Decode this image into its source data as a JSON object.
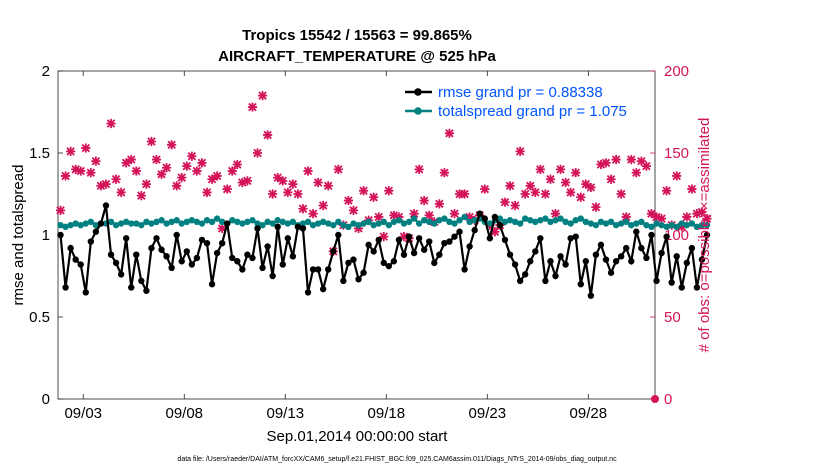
{
  "chart_data": {
    "type": "line",
    "title": "Tropics 15542 / 15563 = 99.865%",
    "subtitle": "AIRCRAFT_TEMPERATURE @ 525 hPa",
    "xlabel": "Sep.01,2014 00:00:00 start",
    "ylabel": "rmse and totalspread",
    "y2label": "# of obs: o=possible; ×=assimilated",
    "footnote": "data file: /Users/raeder/DAI/ATM_forcXX/CAM6_setup/f.e21.FHIST_BGC.f09_025.CAM6assim.011/Diags_NTrS_2014-09/obs_diag_output.nc",
    "x_unit": "days since Sep.01,2014 00:00",
    "xlim": [
      0.75,
      30.3
    ],
    "ylim": [
      0,
      2
    ],
    "y2lim": [
      0,
      200
    ],
    "x_ticks": [
      2,
      7,
      12,
      17,
      22,
      27
    ],
    "x_tick_labels": [
      "09/03",
      "09/08",
      "09/13",
      "09/18",
      "09/23",
      "09/28"
    ],
    "y_ticks": [
      "0",
      "0.5",
      "1",
      "1.5",
      "2"
    ],
    "y2_ticks": [
      "0",
      "50",
      "100",
      "150",
      "200"
    ],
    "legend_position": "top-right",
    "colors": {
      "rmse": "#000000",
      "spread": "#008080",
      "obs": "#d4145a",
      "legend_text": "#0055ff"
    },
    "series": [
      {
        "name": "rmse grand pr = 0.88338",
        "axis": "left",
        "values": [
          1.0,
          0.68,
          0.92,
          0.85,
          0.82,
          0.65,
          0.96,
          1.02,
          1.07,
          1.18,
          0.88,
          0.83,
          0.76,
          0.98,
          0.68,
          0.88,
          0.72,
          0.66,
          0.92,
          0.98,
          0.91,
          0.87,
          0.8,
          1.0,
          0.84,
          0.9,
          0.82,
          0.86,
          0.97,
          0.95,
          0.7,
          0.89,
          0.95,
          1.07,
          0.86,
          0.84,
          0.79,
          0.88,
          0.86,
          1.04,
          0.8,
          0.93,
          0.75,
          1.05,
          0.82,
          0.98,
          0.87,
          1.05,
          1.04,
          0.65,
          0.79,
          0.79,
          0.67,
          0.79,
          0.9,
          1.0,
          0.72,
          0.83,
          0.85,
          0.73,
          0.77,
          0.94,
          0.9,
          0.97,
          0.83,
          0.81,
          0.84,
          0.97,
          0.88,
          0.99,
          0.89,
          0.98,
          0.91,
          0.96,
          0.83,
          0.88,
          0.95,
          0.96,
          0.99,
          1.02,
          0.79,
          0.93,
          1.03,
          1.13,
          1.1,
          0.98,
          1.11,
          1.06,
          0.97,
          0.88,
          0.82,
          0.72,
          0.76,
          0.84,
          0.9,
          0.98,
          0.72,
          0.84,
          0.75,
          0.87,
          0.82,
          0.98,
          0.99,
          0.7,
          0.84,
          0.63,
          0.88,
          0.94,
          0.85,
          0.77,
          0.84,
          0.87,
          0.92,
          0.84,
          1.02,
          0.92,
          0.86,
          1.0,
          0.72,
          0.89,
          0.99,
          0.71,
          0.87,
          0.68,
          0.83,
          0.92,
          0.68,
          0.85,
          1.0
        ]
      },
      {
        "name": "totalspread grand pr = 1.075",
        "axis": "left",
        "values": [
          1.06,
          1.05,
          1.06,
          1.07,
          1.06,
          1.07,
          1.08,
          1.06,
          1.07,
          1.07,
          1.08,
          1.06,
          1.07,
          1.08,
          1.07,
          1.07,
          1.06,
          1.08,
          1.07,
          1.08,
          1.09,
          1.07,
          1.08,
          1.09,
          1.07,
          1.08,
          1.09,
          1.08,
          1.07,
          1.09,
          1.08,
          1.1,
          1.08,
          1.07,
          1.09,
          1.08,
          1.07,
          1.08,
          1.09,
          1.07,
          1.06,
          1.08,
          1.07,
          1.09,
          1.08,
          1.07,
          1.08,
          1.06,
          1.07,
          1.08,
          1.06,
          1.07,
          1.08,
          1.07,
          1.06,
          1.08,
          1.06,
          1.05,
          1.07,
          1.06,
          1.07,
          1.08,
          1.06,
          1.07,
          1.08,
          1.06,
          1.08,
          1.09,
          1.07,
          1.08,
          1.1,
          1.07,
          1.09,
          1.08,
          1.07,
          1.09,
          1.1,
          1.08,
          1.07,
          1.09,
          1.11,
          1.08,
          1.09,
          1.1,
          1.08,
          1.07,
          1.09,
          1.1,
          1.08,
          1.09,
          1.08,
          1.07,
          1.1,
          1.09,
          1.08,
          1.09,
          1.1,
          1.08,
          1.09,
          1.1,
          1.08,
          1.07,
          1.09,
          1.1,
          1.08,
          1.07,
          1.06,
          1.08,
          1.07,
          1.08,
          1.06,
          1.07,
          1.08,
          1.06,
          1.07,
          1.08,
          1.06,
          1.05,
          1.07,
          1.06,
          1.05,
          1.06,
          1.05,
          1.07,
          1.06,
          1.07,
          1.05,
          1.06,
          1.06
        ]
      },
      {
        "name": "# of obs",
        "axis": "right",
        "marker": "x",
        "values": [
          115,
          136,
          151,
          140,
          139,
          153,
          138,
          145,
          130,
          131,
          168,
          134,
          126,
          144,
          146,
          139,
          124,
          131,
          157,
          146,
          137,
          141,
          155,
          130,
          135,
          142,
          148,
          139,
          144,
          126,
          134,
          136,
          104,
          128,
          139,
          143,
          132,
          133,
          178,
          150,
          185,
          161,
          125,
          135,
          133,
          126,
          131,
          125,
          116,
          139,
          113,
          132,
          118,
          130,
          90,
          140,
          106,
          121,
          115,
          104,
          127,
          109,
          123,
          111,
          99,
          127,
          112,
          111,
          99,
          98,
          113,
          140,
          121,
          112,
          108,
          119,
          138,
          162,
          113,
          125,
          125,
          111,
          109,
          112,
          128,
          106,
          102,
          106,
          120,
          130,
          118,
          151,
          125,
          130,
          126,
          140,
          125,
          134,
          113,
          140,
          132,
          126,
          138,
          123,
          131,
          129,
          117,
          143,
          144,
          134,
          146,
          125,
          111,
          146,
          138,
          145,
          142,
          113,
          111,
          110,
          127,
          106,
          136,
          105,
          111,
          128,
          113,
          114,
          110
        ]
      }
    ]
  }
}
